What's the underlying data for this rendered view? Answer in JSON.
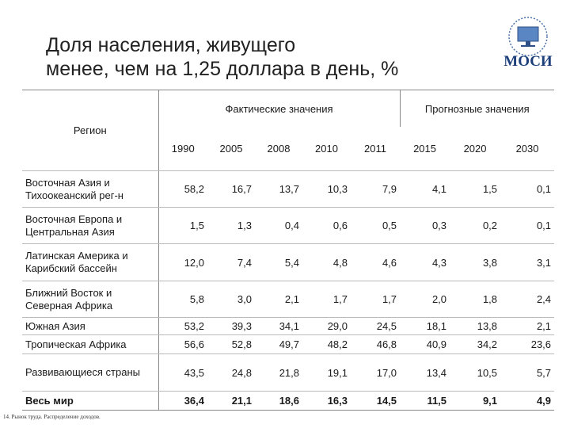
{
  "header": {
    "title_line1": "Доля населения, живущего",
    "title_line2": "менее, чем на 1,25 доллара в день, %",
    "logo": "МОСИ"
  },
  "table": {
    "region_header": "Регион",
    "groups": [
      "Фактические значения",
      "Прогнозные значения"
    ],
    "years": [
      "1990",
      "2005",
      "2008",
      "2010",
      "2011",
      "2015",
      "2020",
      "2030"
    ],
    "rows": [
      {
        "region": "Восточная Азия и Тихоокеанский рег-н",
        "values": [
          "58,2",
          "16,7",
          "13,7",
          "10,3",
          "7,9",
          "4,1",
          "1,5",
          "0,1"
        ]
      },
      {
        "region": "Восточная Европа и Центральная Азия",
        "values": [
          "1,5",
          "1,3",
          "0,4",
          "0,6",
          "0,5",
          "0,3",
          "0,2",
          "0,1"
        ]
      },
      {
        "region": "Латинская Америка и Карибский бассейн",
        "values": [
          "12,0",
          "7,4",
          "5,4",
          "4,8",
          "4,6",
          "4,3",
          "3,8",
          "3,1"
        ]
      },
      {
        "region": "Ближний Восток и Северная Африка",
        "values": [
          "5,8",
          "3,0",
          "2,1",
          "1,7",
          "1,7",
          "2,0",
          "1,8",
          "2,4"
        ]
      },
      {
        "region": "Южная Азия",
        "values": [
          "53,2",
          "39,3",
          "34,1",
          "29,0",
          "24,5",
          "18,1",
          "13,8",
          "2,1"
        ]
      },
      {
        "region": "Тропическая Африка",
        "values": [
          "56,6",
          "52,8",
          "49,7",
          "48,2",
          "46,8",
          "40,9",
          "34,2",
          "23,6"
        ]
      },
      {
        "region": "Развивающиеся страны",
        "values": [
          "43,5",
          "24,8",
          "21,8",
          "19,1",
          "17,0",
          "13,4",
          "10,5",
          "5,7"
        ]
      },
      {
        "region": "Весь мир",
        "values": [
          "36,4",
          "21,1",
          "18,6",
          "16,3",
          "14,5",
          "11,5",
          "9,1",
          "4,9"
        ]
      }
    ]
  },
  "footer": {
    "note": "14. Рынок труда. Распределение доходов."
  }
}
